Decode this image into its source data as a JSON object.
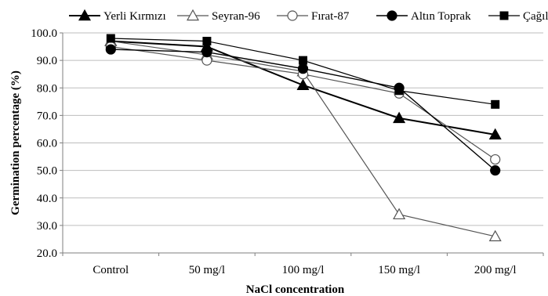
{
  "chart_data": {
    "type": "line",
    "title": "",
    "xlabel": "NaCl concentration",
    "ylabel": "Germination percentage (%)",
    "categories": [
      "Control",
      "50 mg/l",
      "100 mg/l",
      "150 mg/l",
      "200 mg/l"
    ],
    "ylim": [
      20,
      100
    ],
    "yticks": [
      "20.0",
      "30.0",
      "40.0",
      "50.0",
      "60.0",
      "70.0",
      "80.0",
      "90.0",
      "100.0"
    ],
    "grid": "horizontal",
    "legend_position": "top",
    "series": [
      {
        "name": "Yerli Kırmızı",
        "marker": "filled-triangle",
        "color": "#000000",
        "values": [
          97,
          95,
          81,
          69,
          63
        ]
      },
      {
        "name": "Seyran-96",
        "marker": "open-triangle",
        "color": "#555555",
        "values": [
          97,
          92,
          86,
          34,
          26
        ]
      },
      {
        "name": "Fırat-87",
        "marker": "open-circle",
        "color": "#555555",
        "values": [
          95,
          90,
          85,
          78,
          54
        ]
      },
      {
        "name": "Altın Toprak",
        "marker": "filled-circle",
        "color": "#000000",
        "values": [
          94,
          93,
          87,
          80,
          50
        ]
      },
      {
        "name": "Çağıl",
        "marker": "filled-square",
        "color": "#000000",
        "values": [
          98,
          97,
          90,
          79,
          74
        ]
      }
    ]
  }
}
